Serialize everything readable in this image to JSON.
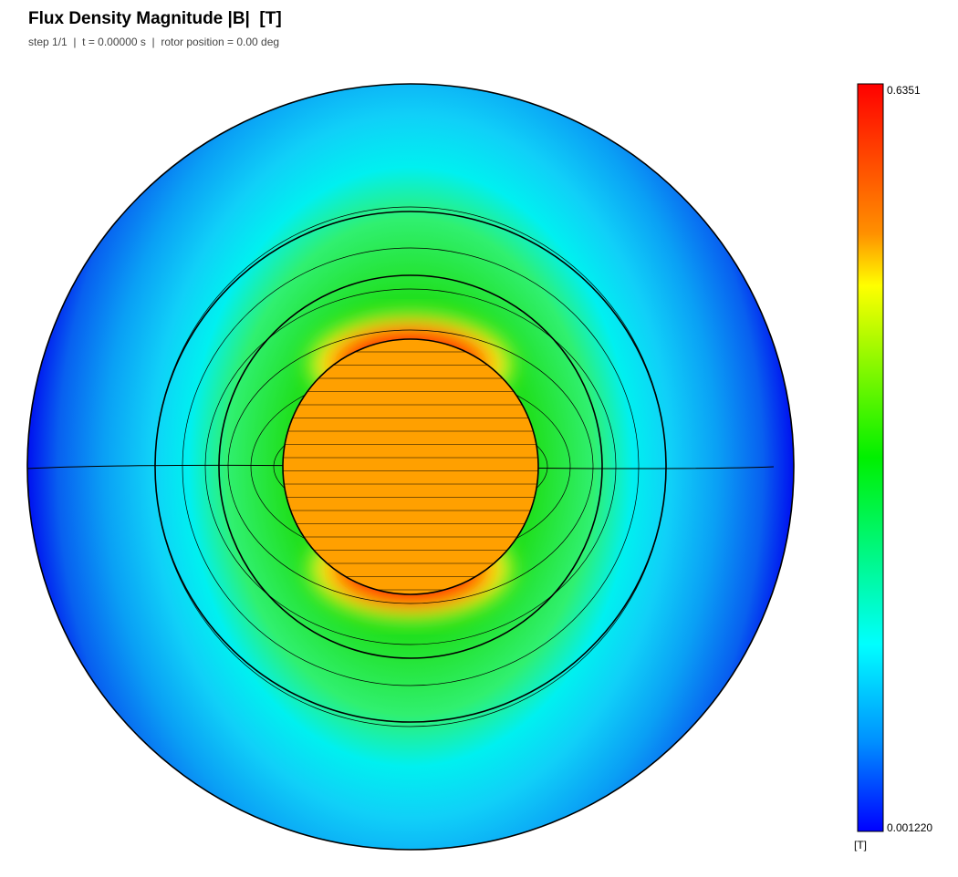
{
  "header": {
    "title": "Flux Density Magnitude |B|  [T]",
    "subtitle": "step 1/1  |  t = 0.00000 s  |  rotor position = 0.00 deg"
  },
  "colorbar": {
    "max_label": "0.6351",
    "min_label": "0.001220",
    "unit": "[T]"
  }
}
